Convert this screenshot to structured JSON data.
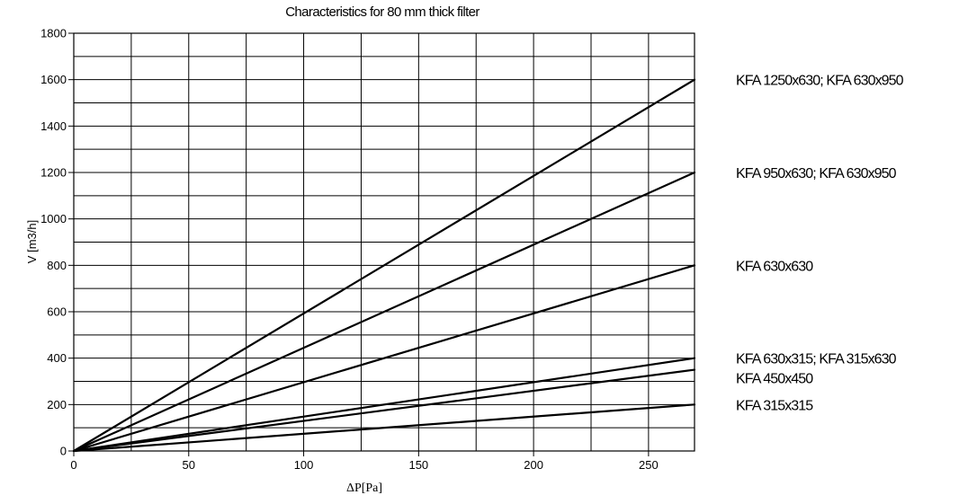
{
  "chart_data": {
    "type": "line",
    "title": "Characteristics for 80 mm thick filter",
    "xlabel": "ΔP[Pa]",
    "ylabel": "V  [m3/h]",
    "xlim": [
      0,
      270
    ],
    "ylim": [
      0,
      1800
    ],
    "x_ticks": [
      0,
      50,
      100,
      150,
      200,
      250
    ],
    "y_ticks": [
      0,
      200,
      400,
      600,
      800,
      1000,
      1200,
      1400,
      1600,
      1800
    ],
    "grid": true,
    "legend": "right, labels beside line ends",
    "series": [
      {
        "name": "KFA 1250x630; KFA 630x950",
        "x": [
          0,
          270
        ],
        "y": [
          0,
          1600
        ]
      },
      {
        "name": "KFA 950x630; KFA 630x950",
        "x": [
          0,
          270
        ],
        "y": [
          0,
          1200
        ]
      },
      {
        "name": "KFA 630x630",
        "x": [
          0,
          270
        ],
        "y": [
          0,
          800
        ]
      },
      {
        "name": "KFA 630x315; KFA 315x630",
        "x": [
          0,
          270
        ],
        "y": [
          0,
          400
        ]
      },
      {
        "name": "KFA 450x450",
        "x": [
          0,
          270
        ],
        "y": [
          0,
          350
        ]
      },
      {
        "name": "KFA 315x315",
        "x": [
          0,
          270
        ],
        "y": [
          0,
          200
        ]
      }
    ]
  }
}
